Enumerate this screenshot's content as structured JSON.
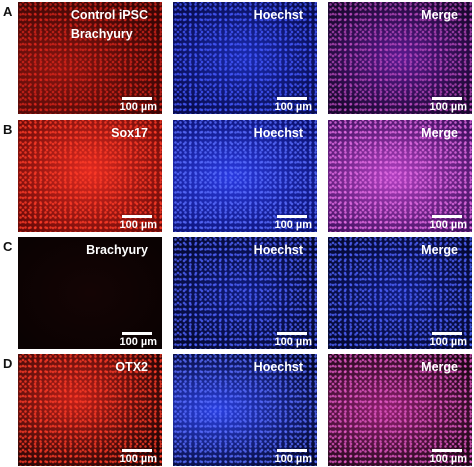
{
  "rows": [
    {
      "letter": "A",
      "panels": [
        {
          "label": [
            "Control iPSC",
            "Brachyury"
          ],
          "scale_bar": "100 µm"
        },
        {
          "label": [
            "Hoechst"
          ],
          "scale_bar": "100 µm"
        },
        {
          "label": [
            "Merge"
          ],
          "scale_bar": "100 µm"
        }
      ]
    },
    {
      "letter": "B",
      "panels": [
        {
          "label": [
            "Sox17"
          ],
          "scale_bar": "100 µm"
        },
        {
          "label": [
            "Hoechst"
          ],
          "scale_bar": "100 µm"
        },
        {
          "label": [
            "Merge"
          ],
          "scale_bar": "100 µm"
        }
      ]
    },
    {
      "letter": "C",
      "panels": [
        {
          "label": [
            "Brachyury"
          ],
          "scale_bar": "100 µm"
        },
        {
          "label": [
            "Hoechst"
          ],
          "scale_bar": "100 µm"
        },
        {
          "label": [
            "Merge"
          ],
          "scale_bar": "100 µm"
        }
      ]
    },
    {
      "letter": "D",
      "panels": [
        {
          "label": [
            "OTX2"
          ],
          "scale_bar": "100 µm"
        },
        {
          "label": [
            "Hoechst"
          ],
          "scale_bar": "100 µm"
        },
        {
          "label": [
            "Merge"
          ],
          "scale_bar": "100 µm"
        }
      ]
    }
  ]
}
